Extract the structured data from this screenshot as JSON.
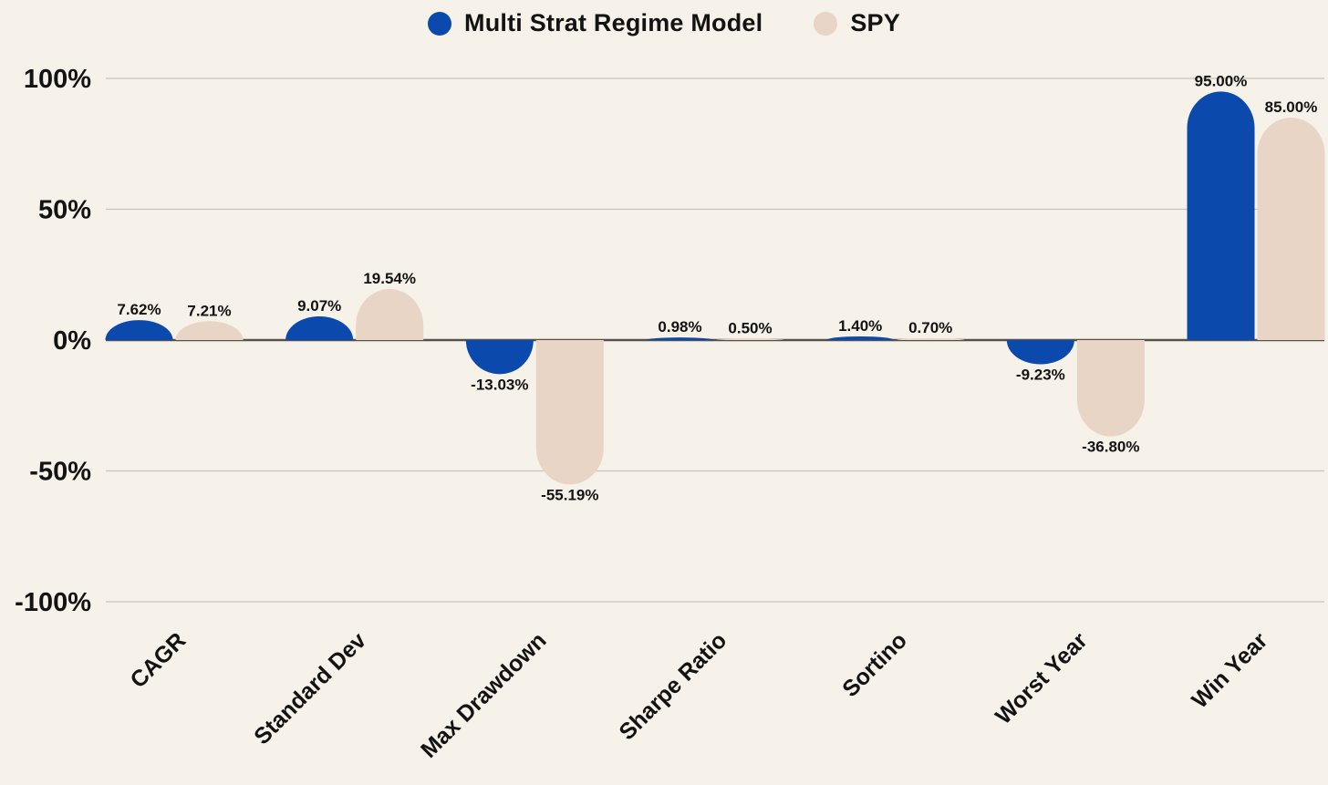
{
  "legend": {
    "items": [
      {
        "label": "Multi Strat Regime Model",
        "color": "#0b49ac"
      },
      {
        "label": "SPY",
        "color": "#e9d5c5"
      }
    ]
  },
  "chart_data": {
    "type": "bar",
    "categories": [
      "CAGR",
      "Standard Dev",
      "Max Drawdown",
      "Sharpe Ratio",
      "Sortino",
      "Worst Year",
      "Win Year"
    ],
    "series": [
      {
        "name": "Multi Strat Regime Model",
        "color": "#0b49ac",
        "values": [
          7.62,
          9.07,
          -13.03,
          0.98,
          1.4,
          -9.23,
          95.0
        ],
        "labels": [
          "7.62%",
          "9.07%",
          "-13.03%",
          "0.98%",
          "1.40%",
          "-9.23%",
          "95.00%"
        ]
      },
      {
        "name": "SPY",
        "color": "#e9d5c5",
        "values": [
          7.21,
          19.54,
          -55.19,
          0.5,
          0.7,
          -36.8,
          85.0
        ],
        "labels": [
          "7.21%",
          "19.54%",
          "-55.19%",
          "0.50%",
          "0.70%",
          "-36.80%",
          "85.00%"
        ]
      }
    ],
    "y_ticks": [
      {
        "value": 100,
        "label": "100%"
      },
      {
        "value": 50,
        "label": "50%"
      },
      {
        "value": 0,
        "label": "0%"
      },
      {
        "value": -50,
        "label": "-50%"
      },
      {
        "value": -100,
        "label": "-100%"
      }
    ],
    "ylim": [
      -100,
      100
    ],
    "grid": true,
    "legend_position": "top",
    "bar_cap_style": "rounded"
  },
  "colors": {
    "background": "#f6f1e9",
    "gridline": "#c9c4bb",
    "zero_line": "#56524b",
    "text": "#131313"
  }
}
